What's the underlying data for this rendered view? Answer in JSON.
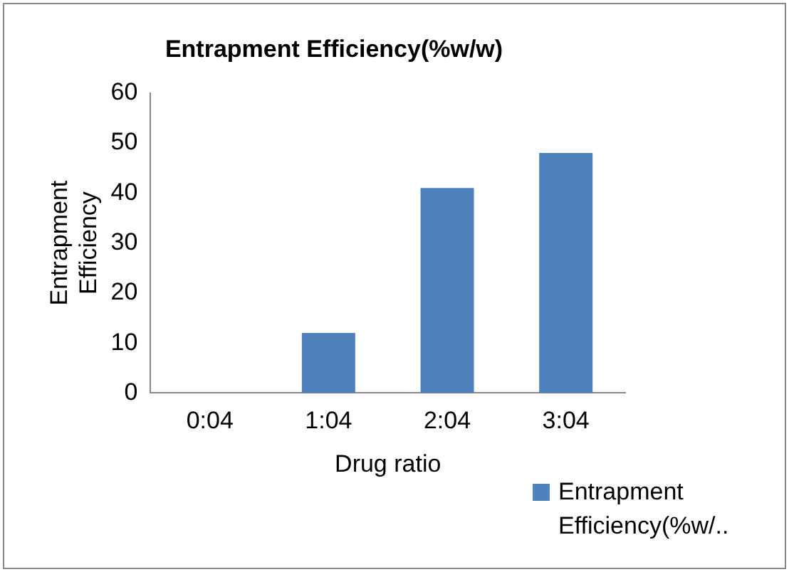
{
  "chart_data": {
    "type": "bar",
    "title": "Entrapment Efficiency(%w/w)",
    "xlabel": "Drug ratio",
    "ylabel": "Entrapment Efficiency",
    "categories": [
      "0:04",
      "1:04",
      "2:04",
      "3:04"
    ],
    "series": [
      {
        "name": "Entrapment Efficiency(%w/..",
        "color": "#4f81bd",
        "values": [
          0,
          12,
          41,
          48
        ]
      }
    ],
    "ylim": [
      0,
      60
    ],
    "yticks": [
      0,
      10,
      20,
      30,
      40,
      50,
      60
    ],
    "grid": false,
    "legend": "bottom right"
  }
}
